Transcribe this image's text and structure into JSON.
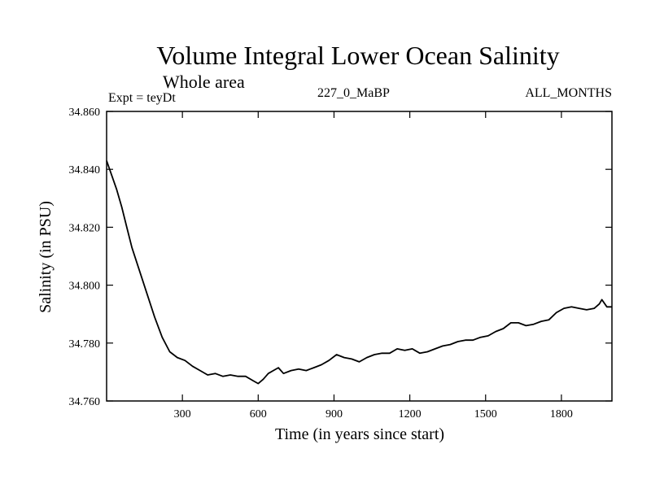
{
  "chart_data": {
    "type": "line",
    "title": "Volume Integral Lower Ocean Salinity",
    "subtitle": "Whole area",
    "left_label": "Expt = teyDt",
    "center_label": "227_0_MaBP",
    "right_label": "ALL_MONTHS",
    "xlabel": "Time (in years since start)",
    "ylabel": "Salinity (in PSU)",
    "xlim": [
      0,
      2000
    ],
    "ylim": [
      34.76,
      34.86
    ],
    "x_ticks": [
      300,
      600,
      900,
      1200,
      1500,
      1800
    ],
    "x_tick_labels": [
      "300",
      "600",
      "900",
      "1200",
      "1500",
      "1800"
    ],
    "y_ticks": [
      34.76,
      34.78,
      34.8,
      34.82,
      34.84,
      34.86
    ],
    "y_tick_labels": [
      "34.760",
      "34.780",
      "34.800",
      "34.820",
      "34.840",
      "34.860"
    ],
    "grid": false,
    "series": [
      {
        "name": "Salinity",
        "x": [
          0,
          20,
          40,
          60,
          80,
          100,
          130,
          160,
          190,
          220,
          250,
          280,
          310,
          340,
          370,
          400,
          430,
          460,
          490,
          520,
          550,
          580,
          600,
          620,
          640,
          660,
          680,
          700,
          730,
          760,
          790,
          820,
          850,
          880,
          910,
          940,
          970,
          1000,
          1030,
          1060,
          1090,
          1120,
          1150,
          1180,
          1210,
          1240,
          1270,
          1300,
          1330,
          1360,
          1390,
          1420,
          1450,
          1480,
          1510,
          1540,
          1570,
          1600,
          1630,
          1660,
          1690,
          1720,
          1750,
          1780,
          1810,
          1840,
          1870,
          1900,
          1930,
          1950,
          1960,
          1980,
          2000
        ],
        "values": [
          34.843,
          34.838,
          34.833,
          34.827,
          34.82,
          34.813,
          34.805,
          34.797,
          34.789,
          34.782,
          34.777,
          34.775,
          34.774,
          34.772,
          34.7705,
          34.769,
          34.7695,
          34.7685,
          34.769,
          34.7685,
          34.7685,
          34.767,
          34.766,
          34.7675,
          34.7695,
          34.7705,
          34.7715,
          34.7695,
          34.7705,
          34.771,
          34.7705,
          34.7715,
          34.7725,
          34.774,
          34.776,
          34.775,
          34.7745,
          34.7735,
          34.775,
          34.776,
          34.7765,
          34.7765,
          34.778,
          34.7775,
          34.778,
          34.7765,
          34.777,
          34.778,
          34.779,
          34.7795,
          34.7805,
          34.781,
          34.781,
          34.782,
          34.7825,
          34.784,
          34.785,
          34.787,
          34.787,
          34.786,
          34.7865,
          34.7875,
          34.788,
          34.7905,
          34.792,
          34.7925,
          34.792,
          34.7915,
          34.792,
          34.7935,
          34.795,
          34.7925,
          34.7925
        ]
      }
    ]
  }
}
